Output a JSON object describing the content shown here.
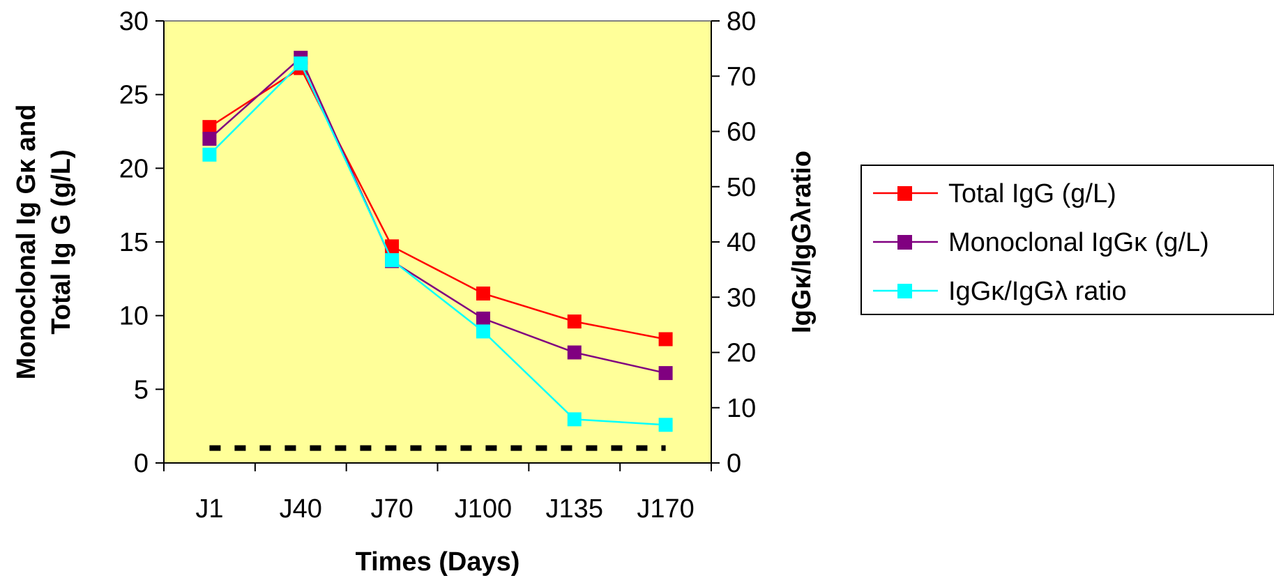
{
  "chart_data": {
    "type": "line",
    "categories": [
      "J1",
      "J40",
      "J70",
      "J100",
      "J135",
      "J170"
    ],
    "xlabel": "Times (Days)",
    "ylabel_left": [
      "Monoclonal Ig Gκ and",
      "Total Ig G (g/L)"
    ],
    "ylabel_right": "IgGκ/IgGλratio",
    "ylim_left": [
      0,
      30
    ],
    "yticks_left": [
      "0",
      "5",
      "10",
      "15",
      "20",
      "25",
      "30"
    ],
    "ylim_right": [
      0,
      80
    ],
    "yticks_right": [
      "0",
      "10",
      "20",
      "30",
      "40",
      "50",
      "60",
      "70",
      "80"
    ],
    "plot_background": "#FFFF99",
    "grid": false,
    "legend_position": "right",
    "series": [
      {
        "name": "Total IgG (g/L)",
        "axis": "left",
        "color": "#FF0000",
        "values": [
          22.8,
          26.8,
          14.7,
          11.5,
          9.6,
          8.4
        ]
      },
      {
        "name": "Monoclonal IgGκ (g/L)",
        "axis": "left",
        "color": "#800080",
        "values": [
          22.0,
          27.5,
          13.7,
          9.8,
          7.5,
          6.1
        ]
      },
      {
        "name": "IgGκ/IgGλ ratio",
        "axis": "right",
        "color": "#00FFFF",
        "values": [
          55.8,
          72.3,
          36.7,
          23.8,
          7.9,
          6.9
        ]
      }
    ],
    "reference_line": {
      "value": 2.7,
      "axis": "right",
      "style": "dashed",
      "color": "#000000"
    }
  }
}
